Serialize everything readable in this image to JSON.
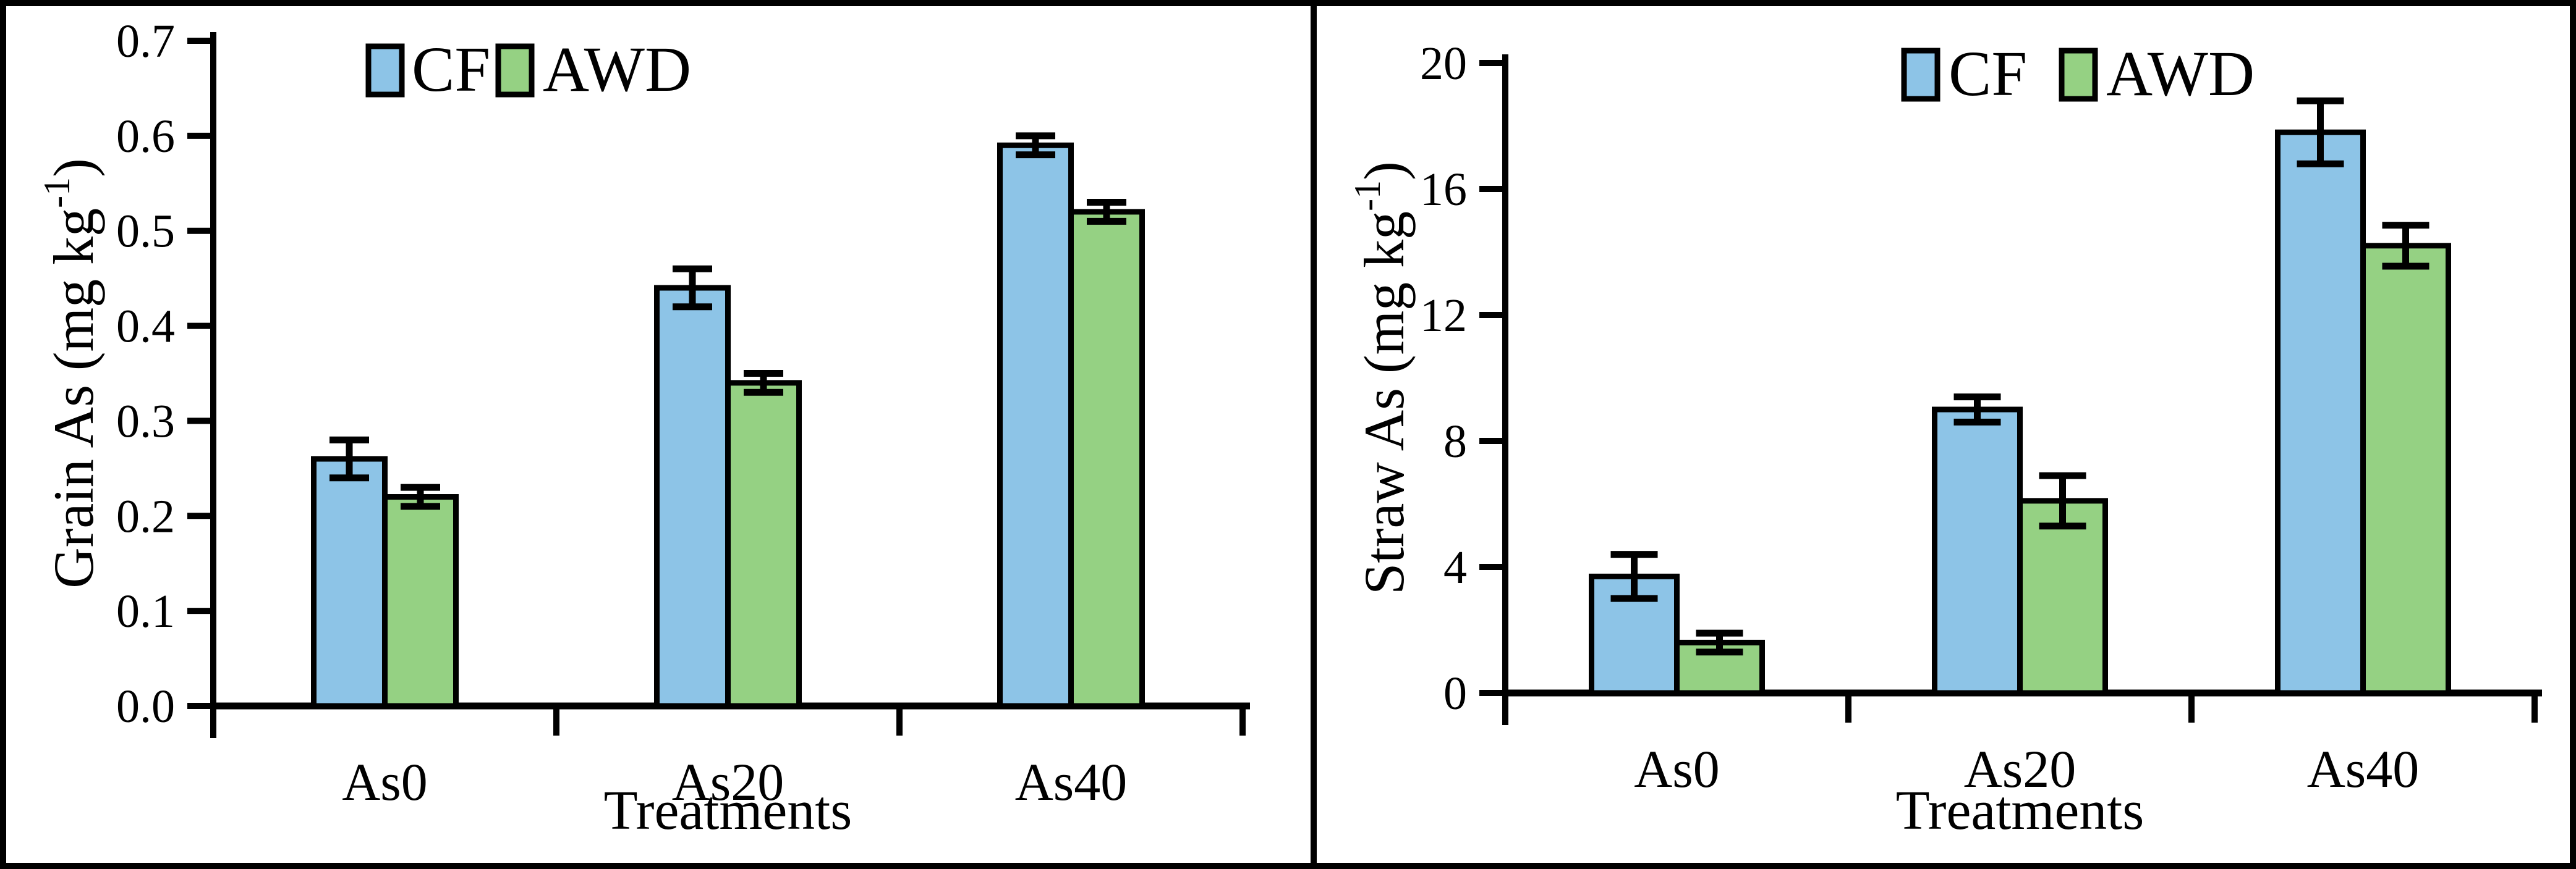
{
  "figure": {
    "background": "#ffffff",
    "border_color": "#000000"
  },
  "colors": {
    "cf_fill": "#8DC4E7",
    "awd_fill": "#95D183",
    "bar_border": "#000000",
    "axis": "#000000",
    "text": "#000000"
  },
  "legend": {
    "cf_label": "CF",
    "awd_label": "AWD"
  },
  "chart_data": [
    {
      "type": "bar",
      "panel": "left",
      "title": "",
      "ylabel": "Grain As (mg kg⁻¹)",
      "ylabel_parts": {
        "pre": "Grain As (mg kg",
        "sup": "-1",
        "post": ")"
      },
      "xlabel": "Treatments",
      "categories": [
        "As0",
        "As20",
        "As40"
      ],
      "series": [
        {
          "name": "CF",
          "values": [
            0.26,
            0.44,
            0.59
          ],
          "errors": [
            0.02,
            0.02,
            0.01
          ]
        },
        {
          "name": "AWD",
          "values": [
            0.22,
            0.34,
            0.52
          ],
          "errors": [
            0.01,
            0.01,
            0.01
          ]
        }
      ],
      "ylim": [
        0,
        0.7
      ],
      "ytick_step": 0.1,
      "ytick_decimals": 1,
      "ytick_labels": [
        "0.0",
        "0.1",
        "0.2",
        "0.3",
        "0.4",
        "0.5",
        "0.6",
        "0.7"
      ],
      "grid": false,
      "error_bars": true,
      "legend": [
        "CF",
        "AWD"
      ],
      "legend_position": "top-inside"
    },
    {
      "type": "bar",
      "panel": "right",
      "title": "",
      "ylabel": "Straw As (mg kg⁻¹)",
      "ylabel_parts": {
        "pre": "Straw As (mg kg",
        "sup": "-1",
        "post": ")"
      },
      "xlabel": "Treatments",
      "categories": [
        "As0",
        "As20",
        "As40"
      ],
      "series": [
        {
          "name": "CF",
          "values": [
            3.7,
            9.0,
            17.8
          ],
          "errors": [
            0.7,
            0.4,
            1.0
          ]
        },
        {
          "name": "AWD",
          "values": [
            1.6,
            6.1,
            14.2
          ],
          "errors": [
            0.3,
            0.8,
            0.65
          ]
        }
      ],
      "ylim": [
        0,
        20
      ],
      "ytick_step": 4,
      "ytick_decimals": 0,
      "ytick_labels": [
        "0",
        "4",
        "8",
        "12",
        "16",
        "20"
      ],
      "grid": false,
      "error_bars": true,
      "legend": [
        "CF",
        "AWD"
      ],
      "legend_position": "top-inside"
    }
  ]
}
